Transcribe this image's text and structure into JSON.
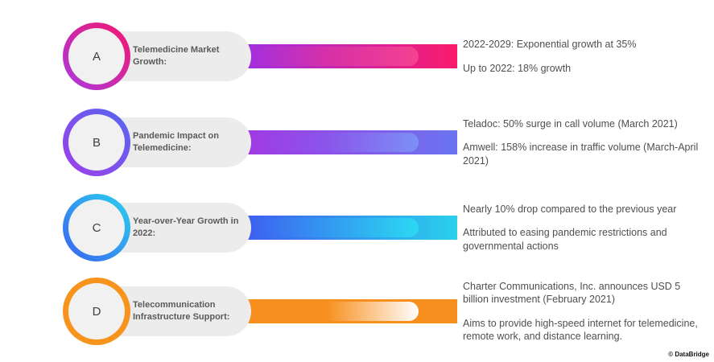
{
  "page": {
    "background": "#ffffff",
    "credit": "© DataBridge"
  },
  "rows": [
    {
      "letter": "A",
      "label": "Telemedicine Market Growth:",
      "points": [
        "2022-2029: Exponential growth at 35%",
        "Up to 2022: 18% growth"
      ],
      "colors": {
        "ring_start": "#F5176E",
        "ring_end": "#A93BE0",
        "bar_start": "#9F2FE2",
        "bar_mid": "#D630A8",
        "bar_cap": "#F5418F",
        "bar_end": "#FB1A6C"
      }
    },
    {
      "letter": "B",
      "label": "Pandemic Impact on Telemedicine:",
      "points": [
        "Teladoc: 50% surge in call volume (March 2021)",
        "Amwell: 158% increase in traffic volume (March-April 2021)"
      ],
      "colors": {
        "ring_start": "#5468F0",
        "ring_end": "#A03EE8",
        "bar_start": "#A238E2",
        "bar_mid": "#8A55EA",
        "bar_cap": "#7B90F5",
        "bar_end": "#6B74F0"
      }
    },
    {
      "letter": "C",
      "label": "Year-over-Year Growth in 2022:",
      "points": [
        "Nearly 10% drop compared to the previous year",
        "Attributed to easing pandemic restrictions and governmental actions"
      ],
      "colors": {
        "ring_start": "#2BD2EE",
        "ring_end": "#3A62F0",
        "bar_start": "#3F5BF0",
        "bar_mid": "#3398F0",
        "bar_cap": "#2BD9F2",
        "bar_end": "#2AD0EC"
      }
    },
    {
      "letter": "D",
      "label": "Telecommunication Infrastructure Support:",
      "points": [
        "Charter Communications, Inc. announces USD 5 billion investment (February 2021)",
        "Aims to provide high-speed internet for telemedicine, remote work, and distance learning."
      ],
      "colors": {
        "ring_start": "#F7941E",
        "ring_end": "#F7941E",
        "bar_start": "#F78F1E",
        "bar_mid": "#F78F1E",
        "bar_cap": "#FFFFFF",
        "bar_end": "#F78F1E"
      }
    }
  ]
}
